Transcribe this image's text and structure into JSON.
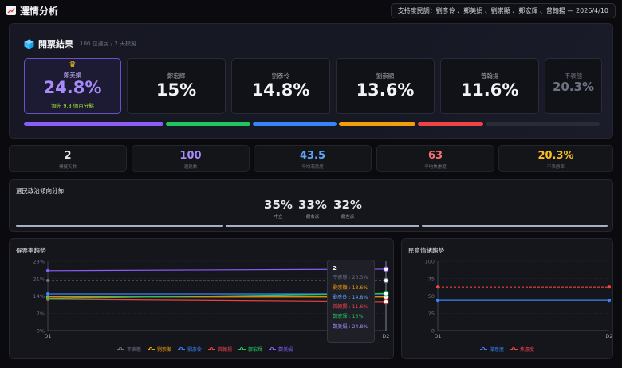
{
  "header": {
    "title": "選情分析",
    "pill": "支持度民調：劉彥伶 、鄭美娟 、劉崇顯 、鄭宏輝 、曾翰揚 — 2026/4/10"
  },
  "results": {
    "title": "開票結果",
    "subtitle": "100 位選民 / 2 天模擬",
    "leader": {
      "name": "鄭美娟",
      "pct": "24.8%",
      "lead_text": "領先 9.8 個百分點"
    },
    "candidates": [
      {
        "name": "鄭宏輝",
        "pct": "15%"
      },
      {
        "name": "劉彥伶",
        "pct": "14.8%"
      },
      {
        "name": "劉崇顯",
        "pct": "13.6%"
      },
      {
        "name": "曾翰揚",
        "pct": "11.6%"
      },
      {
        "name": "不表態",
        "pct": "20.3%"
      }
    ],
    "share_bar": [
      {
        "name": "鄭美娟",
        "value": 24.8,
        "color": "#8b5cf6"
      },
      {
        "name": "鄭宏輝",
        "value": 15,
        "color": "#22c55e"
      },
      {
        "name": "劉彥伶",
        "value": 14.8,
        "color": "#3b82f6"
      },
      {
        "name": "劉崇顯",
        "value": 13.6,
        "color": "#f59e0b"
      },
      {
        "name": "曾翰揚",
        "value": 11.6,
        "color": "#ef4444"
      },
      {
        "name": "不表態",
        "value": 20.3,
        "color": "#2a2d36"
      }
    ]
  },
  "stats": [
    {
      "value": "2",
      "label": "模擬天數",
      "color": "#e5e7eb"
    },
    {
      "value": "100",
      "label": "選民數",
      "color": "#a78bfa"
    },
    {
      "value": "43.5",
      "label": "平均滿意度",
      "color": "#60a5fa"
    },
    {
      "value": "63",
      "label": "平均焦慮度",
      "color": "#f87171"
    },
    {
      "value": "20.3%",
      "label": "不表態率",
      "color": "#fbbf24"
    }
  ],
  "politics": {
    "title": "選民政治傾向分佈",
    "items": [
      {
        "value": "35%",
        "label": "中立"
      },
      {
        "value": "33%",
        "label": "偏右派"
      },
      {
        "value": "32%",
        "label": "偏左派"
      }
    ]
  },
  "trend": {
    "title": "得票率趨勢",
    "tooltip": {
      "title": "2",
      "rows": [
        {
          "text": "不表態 : 20.3%",
          "color": "#6b7280"
        },
        {
          "text": "劉崇顯 : 13.6%",
          "color": "#f59e0b"
        },
        {
          "text": "劉彥伶 : 14.8%",
          "color": "#60a5fa"
        },
        {
          "text": "曾翰揚 : 11.6%",
          "color": "#ef4444"
        },
        {
          "text": "鄭宏輝 : 15%",
          "color": "#22c55e"
        },
        {
          "text": "鄭美娟 : 24.8%",
          "color": "#a78bfa"
        }
      ]
    }
  },
  "mood": {
    "title": "民意情緒趨勢"
  },
  "chart_data": [
    {
      "type": "line",
      "title": "得票率趨勢",
      "x": [
        "D1",
        "D2"
      ],
      "ylim": [
        0,
        28
      ],
      "yticks": [
        "0%",
        "7%",
        "14%",
        "21%",
        "28%"
      ],
      "series": [
        {
          "name": "不表態",
          "values": [
            20.3,
            20.3
          ],
          "color": "#6b7280",
          "dashed": true
        },
        {
          "name": "劉崇顯",
          "values": [
            13.6,
            13.6
          ],
          "color": "#f59e0b"
        },
        {
          "name": "劉彥伶",
          "values": [
            14.8,
            14.8
          ],
          "color": "#3b82f6"
        },
        {
          "name": "曾翰揚",
          "values": [
            12.6,
            11.6
          ],
          "color": "#ef4444"
        },
        {
          "name": "鄭宏輝",
          "values": [
            13.0,
            15.0
          ],
          "color": "#22c55e"
        },
        {
          "name": "鄭美娟",
          "values": [
            24.2,
            24.8
          ],
          "color": "#8b5cf6"
        }
      ],
      "legend": "bottom"
    },
    {
      "type": "line",
      "title": "民意情緒趨勢",
      "x": [
        "D1",
        "D2"
      ],
      "ylim": [
        0,
        100
      ],
      "yticks": [
        "0",
        "25",
        "50",
        "75",
        "100"
      ],
      "series": [
        {
          "name": "滿意度",
          "values": [
            43.5,
            43.5
          ],
          "color": "#3b82f6"
        },
        {
          "name": "焦慮度",
          "values": [
            63,
            63
          ],
          "color": "#ef4444",
          "dashed": true
        }
      ],
      "legend": "bottom"
    }
  ]
}
